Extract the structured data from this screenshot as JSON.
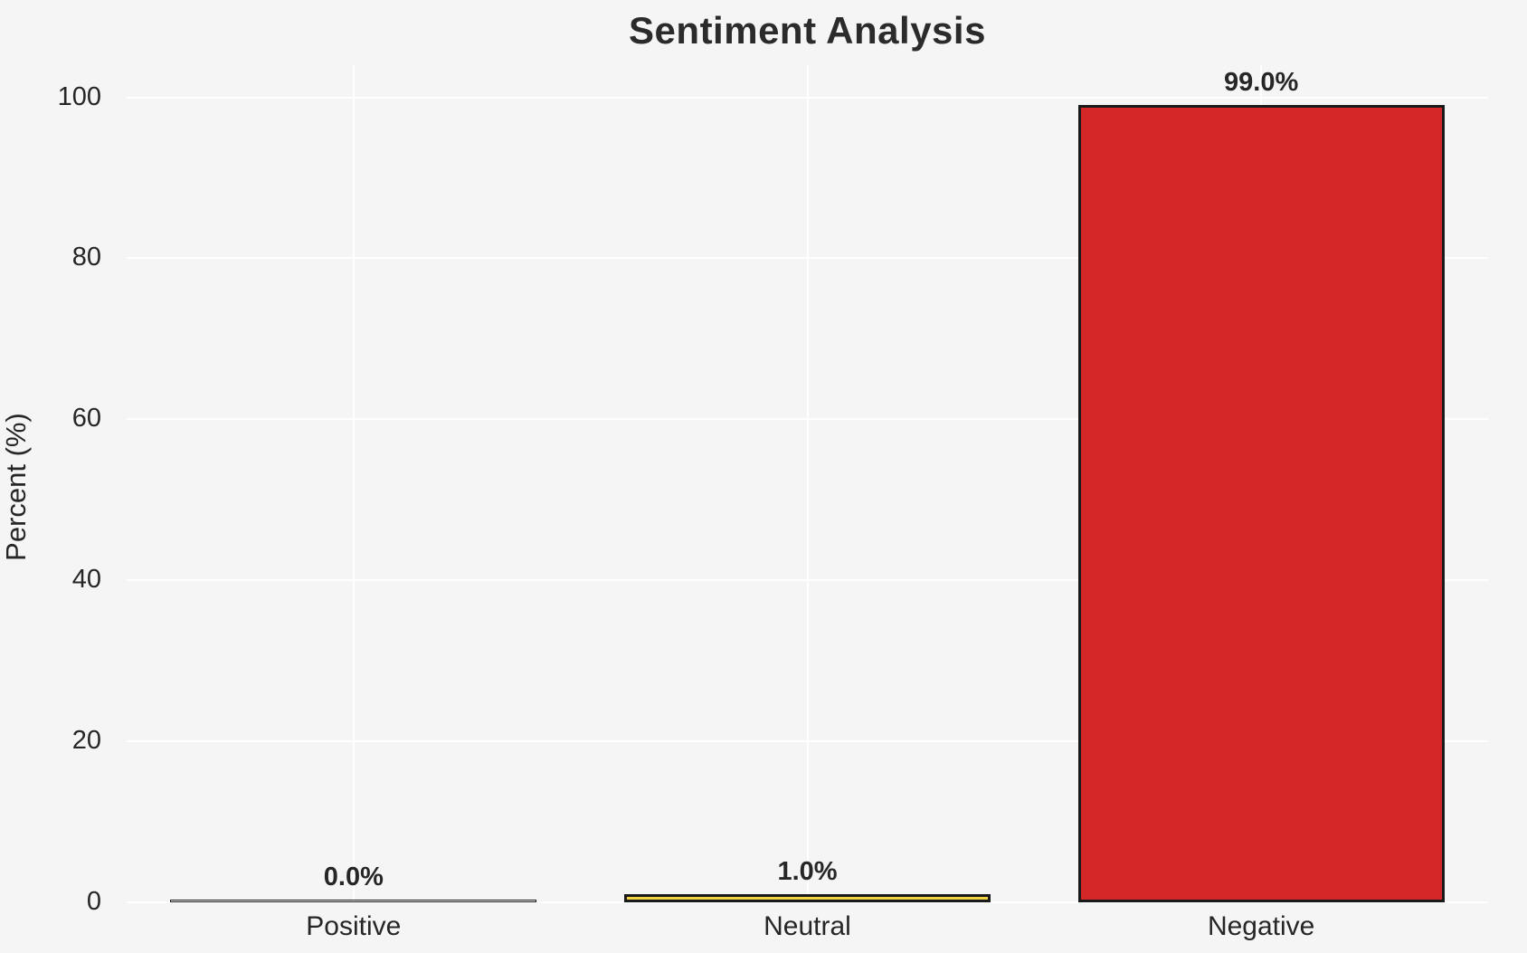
{
  "chart_data": {
    "type": "bar",
    "title": "Sentiment Analysis",
    "xlabel": "",
    "ylabel": "Percent (%)",
    "categories": [
      "Positive",
      "Neutral",
      "Negative"
    ],
    "values": [
      0.0,
      1.0,
      99.0
    ],
    "bar_labels": [
      "0.0%",
      "1.0%",
      "99.0%"
    ],
    "bar_fill_colors": [
      "none",
      "#f5d342",
      "#d62728"
    ],
    "bar_edge_color": "#1a1a1a",
    "yticks": [
      0,
      20,
      40,
      60,
      80,
      100
    ],
    "ylim": [
      0,
      104
    ],
    "grid": "on",
    "legend": "none",
    "background_color": "#f5f5f5",
    "gridline_color": "#ffffff",
    "text_color": "#262626",
    "title_color": "#2b2b2b"
  }
}
